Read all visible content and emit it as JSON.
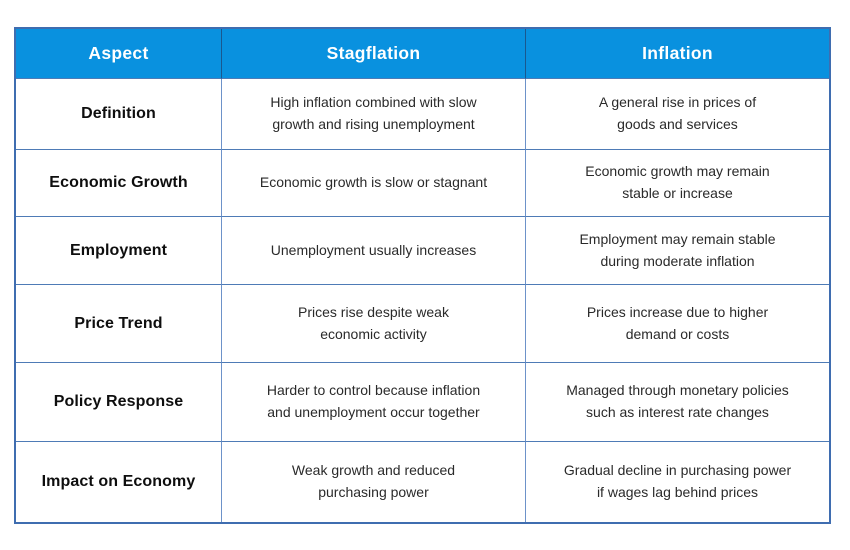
{
  "page": {
    "background": "#ffffff"
  },
  "colors": {
    "header_bg": "#0991DF",
    "header_text": "#ffffff",
    "outer_border": "#3f6db0",
    "inner_border_horizontal": "#4e7bb6",
    "inner_border_vertical": "#6d92c9",
    "header_divider": "#19588f",
    "aspect_text": "#0e0e0e",
    "body_text": "#2a2a2a"
  },
  "chart_data": {
    "type": "table",
    "title": "",
    "columns": [
      "Aspect",
      "Stagflation",
      "Inflation"
    ],
    "rows": [
      {
        "aspect": "Definition",
        "stagflation": "High inflation combined with slow\ngrowth and rising unemployment",
        "inflation": "A general rise in prices of\ngoods and services"
      },
      {
        "aspect": "Economic Growth",
        "stagflation": "Economic growth is slow or stagnant",
        "inflation": "Economic growth may remain\nstable or increase"
      },
      {
        "aspect": "Employment",
        "stagflation": "Unemployment usually increases",
        "inflation": "Employment may remain stable\nduring moderate inflation"
      },
      {
        "aspect": "Price Trend",
        "stagflation": "Prices rise despite weak\neconomic activity",
        "inflation": "Prices increase due to higher\ndemand or costs"
      },
      {
        "aspect": "Policy Response",
        "stagflation": "Harder to control because inflation\nand unemployment occur together",
        "inflation": "Managed through monetary policies\nsuch as interest rate changes"
      },
      {
        "aspect": "Impact on Economy",
        "stagflation": "Weak growth and reduced\npurchasing power",
        "inflation": "Gradual decline in purchasing power\nif wages lag behind prices"
      }
    ]
  }
}
